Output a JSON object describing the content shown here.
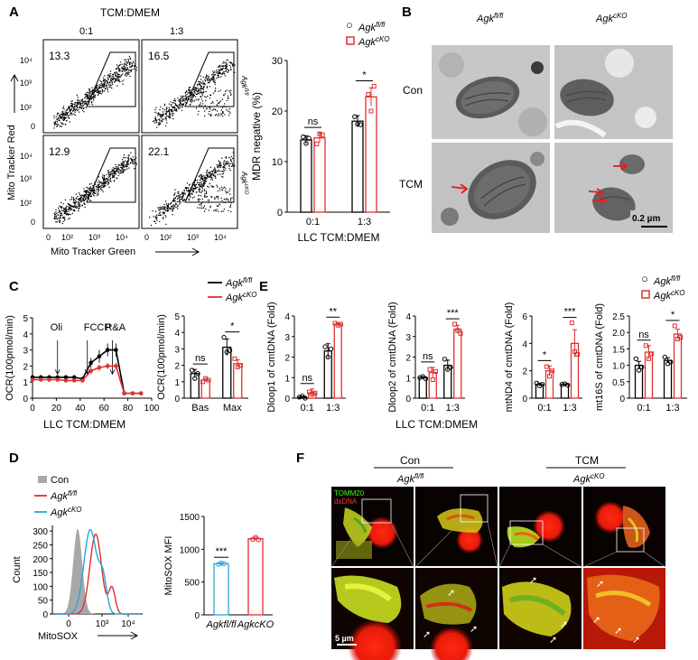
{
  "panel_labels": {
    "A": "A",
    "B": "B",
    "C": "C",
    "D": "D",
    "E": "E",
    "F": "F"
  },
  "colors": {
    "flfl": "#000000",
    "cko": "#e03030",
    "cko_d": "#2ba6d8",
    "con_fill": "#a8a8a8"
  },
  "legend": {
    "flfl_base": "Agk",
    "flfl_sup": "fl/fl",
    "cko_base": "Agk",
    "cko_sup": "cKO"
  },
  "panelA": {
    "top_title": "TCM:DMEM",
    "col_labels": [
      "0:1",
      "1:3"
    ],
    "row_labels": [
      "Agkfl/fl",
      "AgkcKO"
    ],
    "y_axis_label": "Mito Tracker Red",
    "x_axis_label": "Mito Tracker Green",
    "y_ticks": [
      "10⁴",
      "10³",
      "10²",
      "0"
    ],
    "x_ticks": [
      "0",
      "10²",
      "10³",
      "10⁴"
    ],
    "gate_values": [
      "13.3",
      "16.5",
      "12.9",
      "22.1"
    ]
  },
  "chart_data": [
    {
      "id": "A-bar",
      "type": "bar",
      "categories": [
        "0:1",
        "1:3"
      ],
      "series": [
        {
          "name": "Agkfl/fl",
          "values": [
            14.3,
            18.0
          ],
          "err": [
            0.8,
            1.1
          ],
          "points": [
            [
              14.9,
              13.6,
              14.6
            ],
            [
              18.9,
              17.4,
              17.3
            ]
          ]
        },
        {
          "name": "AgkcKO",
          "values": [
            14.7,
            22.8
          ],
          "err": [
            1.0,
            1.8
          ],
          "points": [
            [
              13.5,
              15.5,
              15.3
            ],
            [
              23.3,
              20.0,
              24.9
            ]
          ]
        }
      ],
      "xlabel": "LLC TCM:DMEM",
      "ylabel": "MDR negative (%)",
      "ylim": [
        0,
        30
      ],
      "yticks": [
        "0",
        "10",
        "20",
        "30"
      ],
      "significance": [
        "ns",
        "*"
      ]
    },
    {
      "id": "C-line",
      "type": "line",
      "x": [
        0,
        7,
        14,
        21,
        28,
        35,
        42,
        49,
        56,
        63,
        70,
        77,
        84,
        91
      ],
      "series": [
        {
          "name": "Agkfl/fl",
          "values": [
            1.3,
            1.3,
            1.3,
            1.3,
            1.3,
            1.3,
            1.2,
            2.2,
            2.6,
            3.0,
            3.0,
            0.3,
            0.3,
            0.3
          ],
          "err": [
            0.1,
            0.1,
            0.1,
            0.1,
            0.1,
            0.1,
            0.1,
            0.3,
            0.4,
            0.4,
            0.4,
            0.05,
            0.05,
            0.05
          ]
        },
        {
          "name": "AgkcKO",
          "values": [
            1.15,
            1.15,
            1.15,
            1.15,
            1.1,
            1.1,
            1.1,
            1.7,
            1.9,
            2.0,
            2.0,
            0.3,
            0.3,
            0.3
          ],
          "err": [
            0.1,
            0.1,
            0.1,
            0.1,
            0.1,
            0.1,
            0.1,
            0.2,
            0.2,
            0.2,
            0.2,
            0.05,
            0.05,
            0.05
          ]
        }
      ],
      "annotations": [
        {
          "label": "Oli",
          "x": 21
        },
        {
          "label": "FCCP",
          "x": 46
        },
        {
          "label": "R&A",
          "x": 67
        }
      ],
      "xlabel": "LLC TCM:DMEM",
      "ylabel": "OCR(100pmol/min)",
      "xlim": [
        0,
        100
      ],
      "ylim": [
        0,
        5
      ],
      "xticks": [
        "0",
        "20",
        "40",
        "60",
        "80",
        "100"
      ],
      "yticks": [
        "0",
        "1",
        "2",
        "3",
        "4",
        "5"
      ]
    },
    {
      "id": "C-bar",
      "type": "bar",
      "categories": [
        "Bas",
        "Max"
      ],
      "series": [
        {
          "name": "Agkfl/fl",
          "values": [
            1.5,
            3.1
          ],
          "err": [
            0.25,
            0.5
          ],
          "points": [
            [
              1.7,
              1.2,
              1.5
            ],
            [
              3.7,
              2.8,
              2.9
            ]
          ]
        },
        {
          "name": "AgkcKO",
          "values": [
            1.1,
            2.1
          ],
          "err": [
            0.1,
            0.25
          ],
          "points": [
            [
              1.0,
              1.2,
              1.1
            ],
            [
              2.4,
              1.9,
              2.0
            ]
          ]
        }
      ],
      "ylabel": "OCR(100pmol/min)",
      "ylim": [
        0,
        5
      ],
      "yticks": [
        "0",
        "1",
        "2",
        "3",
        "4",
        "5"
      ],
      "significance": [
        "ns",
        "*"
      ]
    },
    {
      "id": "E-dloop1",
      "type": "bar",
      "categories": [
        "0:1",
        "1:3"
      ],
      "series": [
        {
          "name": "Agkfl/fl",
          "values": [
            0.05,
            2.3
          ],
          "err": [
            0.05,
            0.35
          ],
          "points": [
            [
              0.05,
              0.1,
              0.0
            ],
            [
              2.5,
              2.0,
              2.4
            ]
          ]
        },
        {
          "name": "AgkcKO",
          "values": [
            0.25,
            3.6
          ],
          "err": [
            0.2,
            0.08
          ],
          "points": [
            [
              0.3,
              0.2,
              0.25
            ],
            [
              3.65,
              3.55,
              3.6
            ]
          ]
        }
      ],
      "ylabel": "Dloop1 of cmtDNA (Fold)",
      "ylim": [
        0,
        4
      ],
      "yticks": [
        "0",
        "1",
        "2",
        "3",
        "4"
      ],
      "significance": [
        "ns",
        "**"
      ]
    },
    {
      "id": "E-dloop2",
      "type": "bar",
      "categories": [
        "0:1",
        "1:3"
      ],
      "series": [
        {
          "name": "Agkfl/fl",
          "values": [
            1.0,
            1.6
          ],
          "err": [
            0.05,
            0.25
          ],
          "points": [
            [
              1.0,
              1.05,
              0.95
            ],
            [
              1.9,
              1.4,
              1.5
            ]
          ]
        },
        {
          "name": "AgkcKO",
          "values": [
            1.25,
            3.35
          ],
          "err": [
            0.25,
            0.2
          ],
          "points": [
            [
              1.4,
              0.9,
              1.3
            ],
            [
              3.6,
              3.3,
              3.15
            ]
          ]
        }
      ],
      "ylabel": "Dloop2 of cmtDNA (Fold)",
      "ylim": [
        0,
        4
      ],
      "yticks": [
        "0",
        "1",
        "2",
        "3",
        "4"
      ],
      "significance": [
        "ns",
        "***"
      ]
    },
    {
      "id": "E-mtnd4",
      "type": "bar",
      "categories": [
        "0:1",
        "1:3"
      ],
      "series": [
        {
          "name": "Agkfl/fl",
          "values": [
            1.0,
            1.0
          ],
          "err": [
            0.1,
            0.05
          ],
          "points": [
            [
              1.1,
              0.9,
              1.0
            ],
            [
              1.0,
              1.05,
              0.95
            ]
          ]
        },
        {
          "name": "AgkcKO",
          "values": [
            2.0,
            4.0
          ],
          "err": [
            0.35,
            1.0
          ],
          "points": [
            [
              2.3,
              1.6,
              2.0
            ],
            [
              5.5,
              3.4,
              3.2
            ]
          ]
        }
      ],
      "ylabel": "mtND4 of cmtDNA (Fold)",
      "ylim": [
        0,
        6
      ],
      "yticks": [
        "0",
        "2",
        "4",
        "6"
      ],
      "significance": [
        "*",
        "***"
      ]
    },
    {
      "id": "E-mt16s",
      "type": "bar",
      "categories": [
        "0:1",
        "1:3"
      ],
      "series": [
        {
          "name": "Agkfl/fl",
          "values": [
            1.0,
            1.15
          ],
          "err": [
            0.12,
            0.08
          ],
          "points": [
            [
              1.2,
              0.85,
              0.95
            ],
            [
              1.25,
              1.05,
              1.1
            ]
          ]
        },
        {
          "name": "AgkcKO",
          "values": [
            1.4,
            1.95
          ],
          "err": [
            0.2,
            0.15
          ],
          "points": [
            [
              1.6,
              1.2,
              1.35
            ],
            [
              2.2,
              1.8,
              1.85
            ]
          ]
        }
      ],
      "ylabel": "mt16S of cmtDNA (Fold)",
      "ylim": [
        0,
        2.5
      ],
      "yticks": [
        "0",
        "0.5",
        "1.0",
        "1.5",
        "2.0",
        "2.5"
      ],
      "significance": [
        "ns",
        "*"
      ]
    },
    {
      "id": "D-bar",
      "type": "bar",
      "categories": [
        "Agkfl/fl",
        "AgkcKO"
      ],
      "series": [
        {
          "name": "MitoSOX MFI",
          "values": [
            780,
            1160
          ],
          "err": [
            15,
            25
          ],
          "points": [
            [
              770,
              790,
              780
            ],
            [
              1150,
              1185,
              1145
            ]
          ]
        }
      ],
      "ylabel": "MitoSOX MFI",
      "ylim": [
        0,
        1500
      ],
      "yticks": [
        "0",
        "500",
        "1000",
        "1500"
      ],
      "significance": [
        "***"
      ]
    },
    {
      "id": "D-hist",
      "type": "area",
      "series": [
        {
          "name": "Con"
        },
        {
          "name": "Agkfl/fl"
        },
        {
          "name": "AgkcKO"
        }
      ],
      "xlabel": "MitoSOX",
      "ylabel": "Count",
      "xticks": [
        "0",
        "10³",
        "10⁴"
      ],
      "yticks": [
        "0",
        "50",
        "100",
        "150",
        "200",
        "250",
        "300"
      ],
      "ylim": [
        0,
        320
      ]
    }
  ],
  "panelC_xlabel": "LLC TCM:DMEM",
  "panelE_xlabel": "LLC TCM:DMEM",
  "panelB": {
    "col_labels": [
      "Agkfl/fl",
      "AgkcKO"
    ],
    "row_labels": [
      "Con",
      "TCM"
    ],
    "scale_bar": "0.2 µm"
  },
  "panelD_legend": [
    "Con",
    "Agkfl/fl",
    "AgkcKO"
  ],
  "panelF": {
    "group_labels": [
      "Con",
      "TCM"
    ],
    "genotype_labels": [
      "Agkfl/fl",
      "AgkcKO"
    ],
    "stain_labels": [
      "TOMM20",
      "dsDNA"
    ],
    "scale_bar": "5 µm"
  }
}
